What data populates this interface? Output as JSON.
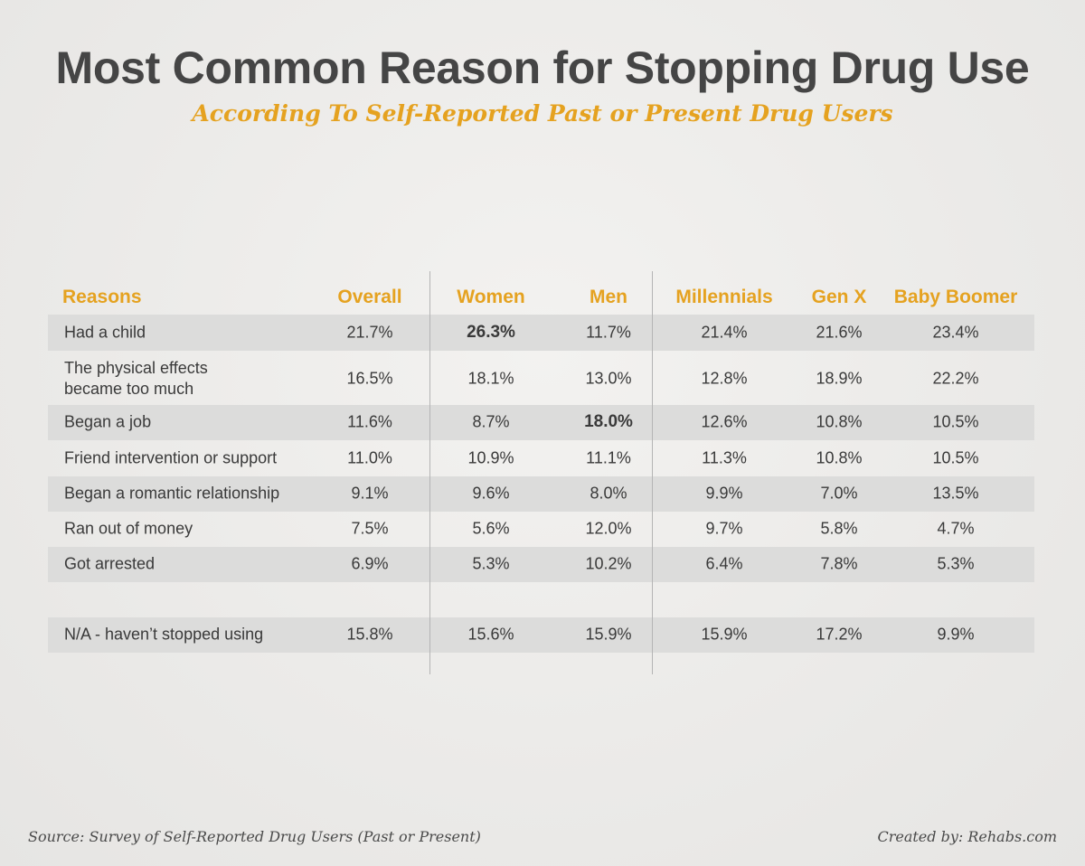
{
  "title": "Most Common Reason for Stopping Drug Use",
  "subtitle": "According To Self-Reported Past or Present Drug Users",
  "source": "Source: Survey of Self-Reported Drug Users (Past or Present)",
  "credit": "Created by: Rehabs.com",
  "colors": {
    "accent": "#e5a220",
    "band": "#dcdcdb",
    "text": "#3a3a3a"
  },
  "chart_data": {
    "type": "table",
    "title": "Most Common Reason for Stopping Drug Use",
    "headers": [
      "Reasons",
      "Overall",
      "Women",
      "Men",
      "Millennials",
      "Gen X",
      "Baby Boomer"
    ],
    "rows": [
      {
        "label": "Had a child",
        "values": [
          "21.7%",
          "26.3%",
          "11.7%",
          "21.4%",
          "21.6%",
          "23.4%"
        ],
        "highlight": 1
      },
      {
        "label": "The physical effects\nbecame too much",
        "values": [
          "16.5%",
          "18.1%",
          "13.0%",
          "12.8%",
          "18.9%",
          "22.2%"
        ],
        "highlight": -1
      },
      {
        "label": "Began a job",
        "values": [
          "11.6%",
          "8.7%",
          "18.0%",
          "12.6%",
          "10.8%",
          "10.5%"
        ],
        "highlight": 2
      },
      {
        "label": "Friend intervention or support",
        "values": [
          "11.0%",
          "10.9%",
          "11.1%",
          "11.3%",
          "10.8%",
          "10.5%"
        ],
        "highlight": -1
      },
      {
        "label": "Began a romantic relationship",
        "values": [
          "9.1%",
          "9.6%",
          "8.0%",
          "9.9%",
          "7.0%",
          "13.5%"
        ],
        "highlight": -1
      },
      {
        "label": "Ran out of money",
        "values": [
          "7.5%",
          "5.6%",
          "12.0%",
          "9.7%",
          "5.8%",
          "4.7%"
        ],
        "highlight": -1
      },
      {
        "label": "Got arrested",
        "values": [
          "6.9%",
          "5.3%",
          "10.2%",
          "6.4%",
          "7.8%",
          "5.3%"
        ],
        "highlight": -1
      },
      {
        "label": "N/A - haven’t stopped using",
        "values": [
          "15.8%",
          "15.6%",
          "15.9%",
          "15.9%",
          "17.2%",
          "9.9%"
        ],
        "highlight": -1
      }
    ]
  }
}
